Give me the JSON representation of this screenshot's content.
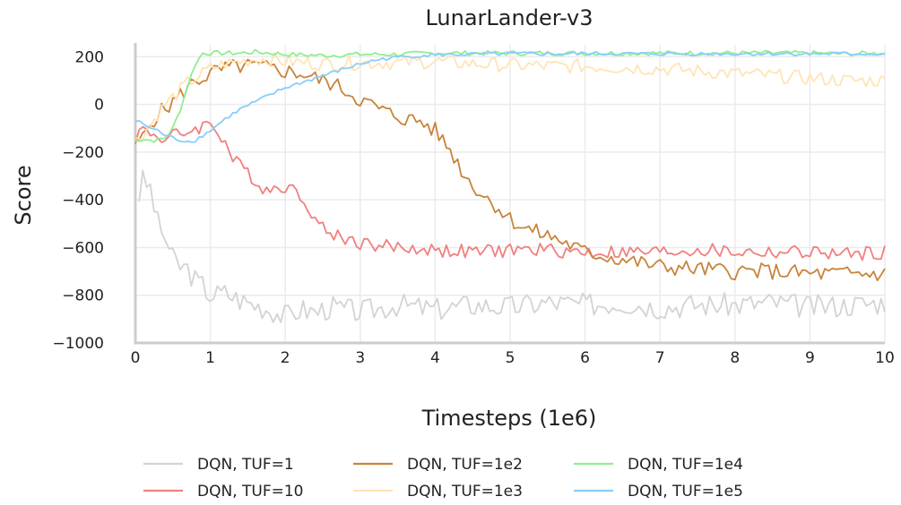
{
  "chart_data": {
    "type": "line",
    "title": "LunarLander-v3",
    "xlabel": "Timesteps (1e6)",
    "ylabel": "Score",
    "xlim": [
      0,
      10
    ],
    "ylim": [
      -1000,
      250
    ],
    "xticks": [
      0,
      1,
      2,
      3,
      4,
      5,
      6,
      7,
      8,
      9,
      10
    ],
    "yticks": [
      -1000,
      -800,
      -600,
      -400,
      -200,
      0,
      200
    ],
    "xtick_labels": [
      "0",
      "1",
      "2",
      "3",
      "4",
      "5",
      "6",
      "7",
      "8",
      "9",
      "10"
    ],
    "ytick_labels": [
      "−1000",
      "−800",
      "−600",
      "−400",
      "−200",
      "0",
      "200"
    ],
    "grid": true,
    "legend_position": "bottom",
    "series": [
      {
        "name": "DQN, TUF=1",
        "color": "#d3d3d3",
        "x": [
          0.05,
          0.1,
          0.2,
          0.3,
          0.4,
          0.5,
          0.6,
          0.7,
          0.8,
          0.9,
          1.0,
          1.2,
          1.4,
          1.6,
          1.8,
          2.0,
          2.2,
          2.4,
          2.6,
          2.8,
          3.0,
          3.5,
          4.0,
          4.5,
          5.0,
          5.5,
          6.0,
          6.5,
          7.0,
          7.5,
          8.0,
          8.5,
          9.0,
          9.5,
          10.0
        ],
        "y": [
          -380,
          -320,
          -350,
          -500,
          -560,
          -650,
          -680,
          -690,
          -740,
          -760,
          -800,
          -790,
          -820,
          -840,
          -860,
          -890,
          -860,
          -870,
          -850,
          -860,
          -870,
          -840,
          -860,
          -840,
          -850,
          -830,
          -840,
          -830,
          -850,
          -840,
          -840,
          -830,
          -850,
          -840,
          -830
        ]
      },
      {
        "name": "DQN, TUF=10",
        "color": "#f08080",
        "x": [
          0.0,
          0.1,
          0.2,
          0.3,
          0.4,
          0.5,
          0.6,
          0.7,
          0.8,
          0.9,
          1.0,
          1.1,
          1.2,
          1.3,
          1.4,
          1.5,
          1.6,
          1.7,
          1.8,
          1.9,
          2.0,
          2.1,
          2.2,
          2.3,
          2.4,
          2.5,
          2.6,
          2.7,
          2.8,
          3.0,
          3.2,
          3.5,
          4.0,
          4.5,
          5.0,
          5.5,
          6.0,
          6.5,
          7.0,
          7.5,
          8.0,
          8.5,
          9.0,
          9.5,
          10.0
        ],
        "y": [
          -140,
          -100,
          -120,
          -130,
          -150,
          -120,
          -140,
          -110,
          -100,
          -90,
          -80,
          -110,
          -160,
          -230,
          -260,
          -280,
          -320,
          -350,
          -360,
          -340,
          -340,
          -360,
          -380,
          -420,
          -480,
          -520,
          -540,
          -550,
          -560,
          -580,
          -590,
          -600,
          -610,
          -620,
          -610,
          -610,
          -620,
          -620,
          -620,
          -610,
          -620,
          -620,
          -620,
          -630,
          -620
        ]
      },
      {
        "name": "DQN, TUF=1e2",
        "color": "#c8843c",
        "x": [
          0.0,
          0.1,
          0.2,
          0.3,
          0.4,
          0.5,
          0.6,
          0.7,
          0.8,
          0.9,
          1.0,
          1.2,
          1.4,
          1.6,
          1.8,
          2.0,
          2.2,
          2.4,
          2.6,
          2.8,
          3.0,
          3.2,
          3.4,
          3.6,
          3.8,
          4.0,
          4.2,
          4.4,
          4.6,
          4.8,
          5.0,
          5.2,
          5.4,
          5.6,
          5.8,
          6.0,
          6.5,
          7.0,
          7.5,
          8.0,
          8.5,
          9.0,
          9.5,
          10.0
        ],
        "y": [
          -160,
          -140,
          -80,
          -40,
          -20,
          10,
          40,
          70,
          100,
          110,
          130,
          150,
          160,
          160,
          150,
          140,
          130,
          110,
          90,
          60,
          20,
          -10,
          -40,
          -60,
          -70,
          -110,
          -190,
          -300,
          -370,
          -420,
          -480,
          -520,
          -540,
          -560,
          -590,
          -620,
          -650,
          -680,
          -690,
          -700,
          -700,
          -710,
          -710,
          -710
        ]
      },
      {
        "name": "DQN, TUF=1e3",
        "color": "#ffe4b5",
        "x": [
          0.0,
          0.1,
          0.2,
          0.3,
          0.4,
          0.5,
          0.6,
          0.7,
          0.8,
          0.9,
          1.0,
          1.2,
          1.4,
          1.6,
          1.8,
          2.0,
          2.5,
          3.0,
          3.5,
          4.0,
          4.5,
          5.0,
          5.5,
          6.0,
          6.5,
          7.0,
          7.5,
          8.0,
          8.5,
          9.0,
          9.5,
          10.0
        ],
        "y": [
          -150,
          -120,
          -90,
          -40,
          0,
          30,
          60,
          90,
          110,
          130,
          150,
          170,
          180,
          190,
          190,
          180,
          170,
          175,
          175,
          180,
          170,
          165,
          160,
          160,
          155,
          150,
          140,
          130,
          120,
          110,
          100,
          100
        ]
      },
      {
        "name": "DQN, TUF=1e4",
        "color": "#90ee90",
        "x": [
          0.0,
          0.1,
          0.2,
          0.3,
          0.4,
          0.5,
          0.6,
          0.7,
          0.8,
          0.9,
          1.0,
          1.2,
          1.4,
          1.6,
          1.8,
          2.0,
          2.5,
          3.0,
          3.5,
          4.0,
          4.5,
          5.0,
          5.5,
          6.0,
          6.5,
          7.0,
          7.5,
          8.0,
          8.5,
          9.0,
          9.5,
          10.0
        ],
        "y": [
          -150,
          -145,
          -150,
          -150,
          -140,
          -100,
          -20,
          80,
          170,
          215,
          215,
          215,
          215,
          220,
          215,
          210,
          205,
          210,
          210,
          215,
          215,
          215,
          215,
          215,
          215,
          215,
          215,
          215,
          215,
          215,
          212,
          215
        ]
      },
      {
        "name": "DQN, TUF=1e5",
        "color": "#87cefa",
        "x": [
          0.0,
          0.1,
          0.2,
          0.3,
          0.4,
          0.5,
          0.6,
          0.7,
          0.8,
          0.9,
          1.0,
          1.2,
          1.4,
          1.6,
          1.8,
          2.0,
          2.2,
          2.4,
          2.6,
          2.8,
          3.0,
          3.2,
          3.4,
          3.6,
          3.8,
          4.0,
          4.5,
          5.0,
          5.5,
          6.0,
          6.5,
          7.0,
          7.5,
          8.0,
          8.5,
          9.0,
          9.5,
          10.0
        ],
        "y": [
          -70,
          -80,
          -100,
          -110,
          -130,
          -140,
          -150,
          -155,
          -150,
          -130,
          -110,
          -60,
          -20,
          10,
          40,
          70,
          90,
          110,
          130,
          150,
          170,
          185,
          195,
          200,
          205,
          208,
          210,
          212,
          212,
          213,
          212,
          212,
          212,
          212,
          212,
          212,
          212,
          212
        ]
      }
    ]
  }
}
